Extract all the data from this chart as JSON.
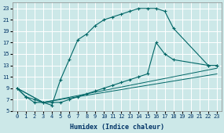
{
  "xlabel": "Humidex (Indice chaleur)",
  "bg_color": "#cce8e8",
  "grid_color": "#ffffff",
  "line_color": "#006666",
  "xlim": [
    -0.5,
    23.5
  ],
  "ylim": [
    5,
    24
  ],
  "xticks": [
    0,
    1,
    2,
    3,
    4,
    5,
    6,
    7,
    8,
    9,
    10,
    11,
    12,
    13,
    14,
    15,
    16,
    17,
    18,
    19,
    20,
    21,
    22,
    23
  ],
  "yticks": [
    5,
    7,
    9,
    11,
    13,
    15,
    17,
    19,
    21,
    23
  ],
  "curve1_x": [
    0,
    1,
    2,
    3,
    4,
    5,
    6,
    7,
    8,
    9,
    10,
    11,
    12,
    13,
    14,
    15,
    16,
    17,
    18,
    22,
    23
  ],
  "curve1_y": [
    9,
    7.5,
    7,
    6.5,
    6,
    10.5,
    14,
    17.5,
    18.5,
    20,
    21,
    21.5,
    22,
    22.5,
    23,
    23,
    23,
    22.5,
    19.5,
    13,
    13
  ],
  "curve2_x": [
    0,
    1,
    2,
    3,
    4,
    5,
    6,
    7,
    8,
    9,
    10,
    11,
    12,
    13,
    14,
    15,
    16,
    17,
    18,
    22,
    23
  ],
  "curve2_y": [
    9,
    7.5,
    6.5,
    6.5,
    6.5,
    6.5,
    7,
    7.5,
    8,
    8.5,
    9,
    9.5,
    10,
    10.5,
    11,
    11.5,
    17,
    15,
    14,
    13,
    13
  ],
  "line1_x": [
    0,
    3,
    23
  ],
  "line1_y": [
    9,
    6.5,
    12.5
  ],
  "line2_x": [
    0,
    3,
    23
  ],
  "line2_y": [
    9,
    6.5,
    11.5
  ]
}
